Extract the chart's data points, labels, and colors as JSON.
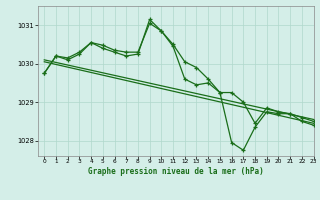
{
  "title": "Graphe pression niveau de la mer (hPa)",
  "bg_color": "#d4eee8",
  "grid_color": "#b0d8cc",
  "line_color": "#1a6e1a",
  "marker_color": "#1a6e1a",
  "xlim": [
    -0.5,
    23
  ],
  "ylim": [
    1027.6,
    1031.5
  ],
  "yticks": [
    1028,
    1029,
    1030,
    1031
  ],
  "xticks": [
    0,
    1,
    2,
    3,
    4,
    5,
    6,
    7,
    8,
    9,
    10,
    11,
    12,
    13,
    14,
    15,
    16,
    17,
    18,
    19,
    20,
    21,
    22,
    23
  ],
  "series_straight1": {
    "x": [
      0,
      23
    ],
    "y": [
      1030.1,
      1028.55
    ]
  },
  "series_straight2": {
    "x": [
      0,
      23
    ],
    "y": [
      1030.05,
      1028.45
    ]
  },
  "series_main": {
    "x": [
      0,
      1,
      2,
      3,
      4,
      5,
      6,
      7,
      8,
      9,
      10,
      11,
      12,
      13,
      14,
      15,
      16,
      17,
      18,
      19,
      20,
      21,
      22,
      23
    ],
    "y": [
      1029.75,
      1030.2,
      1030.15,
      1030.3,
      1030.55,
      1030.48,
      1030.35,
      1030.3,
      1030.3,
      1031.05,
      1030.85,
      1030.5,
      1030.05,
      1029.9,
      1029.6,
      1029.25,
      1029.25,
      1029.0,
      1028.45,
      1028.85,
      1028.75,
      1028.7,
      1028.6,
      1028.5
    ]
  },
  "series_volatile": {
    "x": [
      0,
      1,
      2,
      3,
      4,
      5,
      6,
      7,
      8,
      9,
      10,
      11,
      12,
      13,
      14,
      15,
      16,
      17,
      18,
      19,
      20,
      21,
      22,
      23
    ],
    "y": [
      1029.75,
      1030.2,
      1030.1,
      1030.25,
      1030.55,
      1030.4,
      1030.3,
      1030.2,
      1030.25,
      1031.15,
      1030.85,
      1030.45,
      1029.6,
      1029.45,
      1029.5,
      1029.25,
      1027.95,
      1027.75,
      1028.35,
      1028.75,
      1028.7,
      1028.7,
      1028.5,
      1028.4
    ]
  }
}
